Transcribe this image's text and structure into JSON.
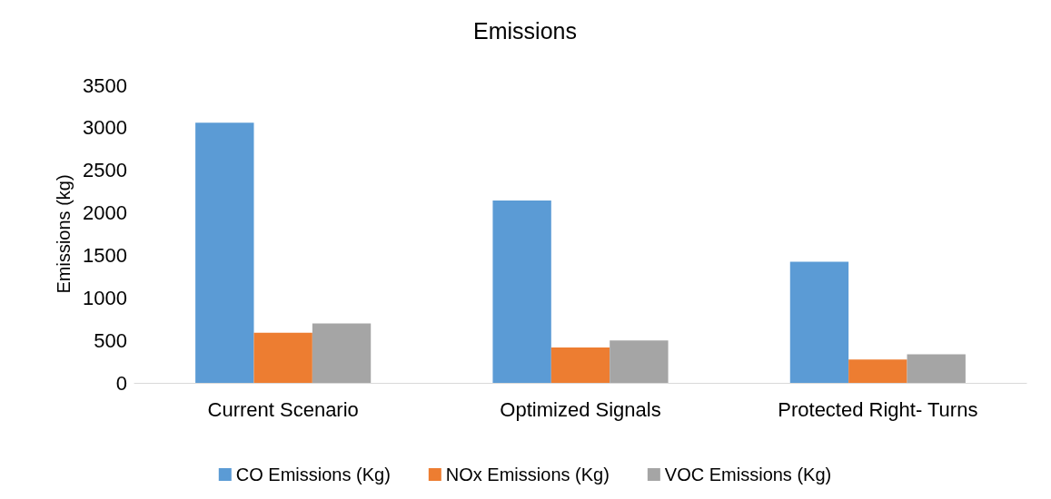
{
  "chart_data": {
    "type": "bar",
    "title": "Emissions",
    "ylabel": "Emissions (kg)",
    "categories": [
      "Current Scenario",
      "Optimized Signals",
      "Protected Right- Turns"
    ],
    "series": [
      {
        "name": "CO Emissions (Kg)",
        "color": "#5b9bd5",
        "values": [
          3060,
          2145,
          1425
        ]
      },
      {
        "name": "NOx Emissions (Kg)",
        "color": "#ed7d31",
        "values": [
          590,
          415,
          275
        ]
      },
      {
        "name": "VOC Emissions (Kg)",
        "color": "#a5a5a5",
        "values": [
          700,
          500,
          335
        ]
      }
    ],
    "ylim": [
      0,
      3500
    ],
    "yticks": [
      0,
      500,
      1000,
      1500,
      2000,
      2500,
      3000,
      3500
    ],
    "grid": false,
    "legend": "bottom"
  }
}
